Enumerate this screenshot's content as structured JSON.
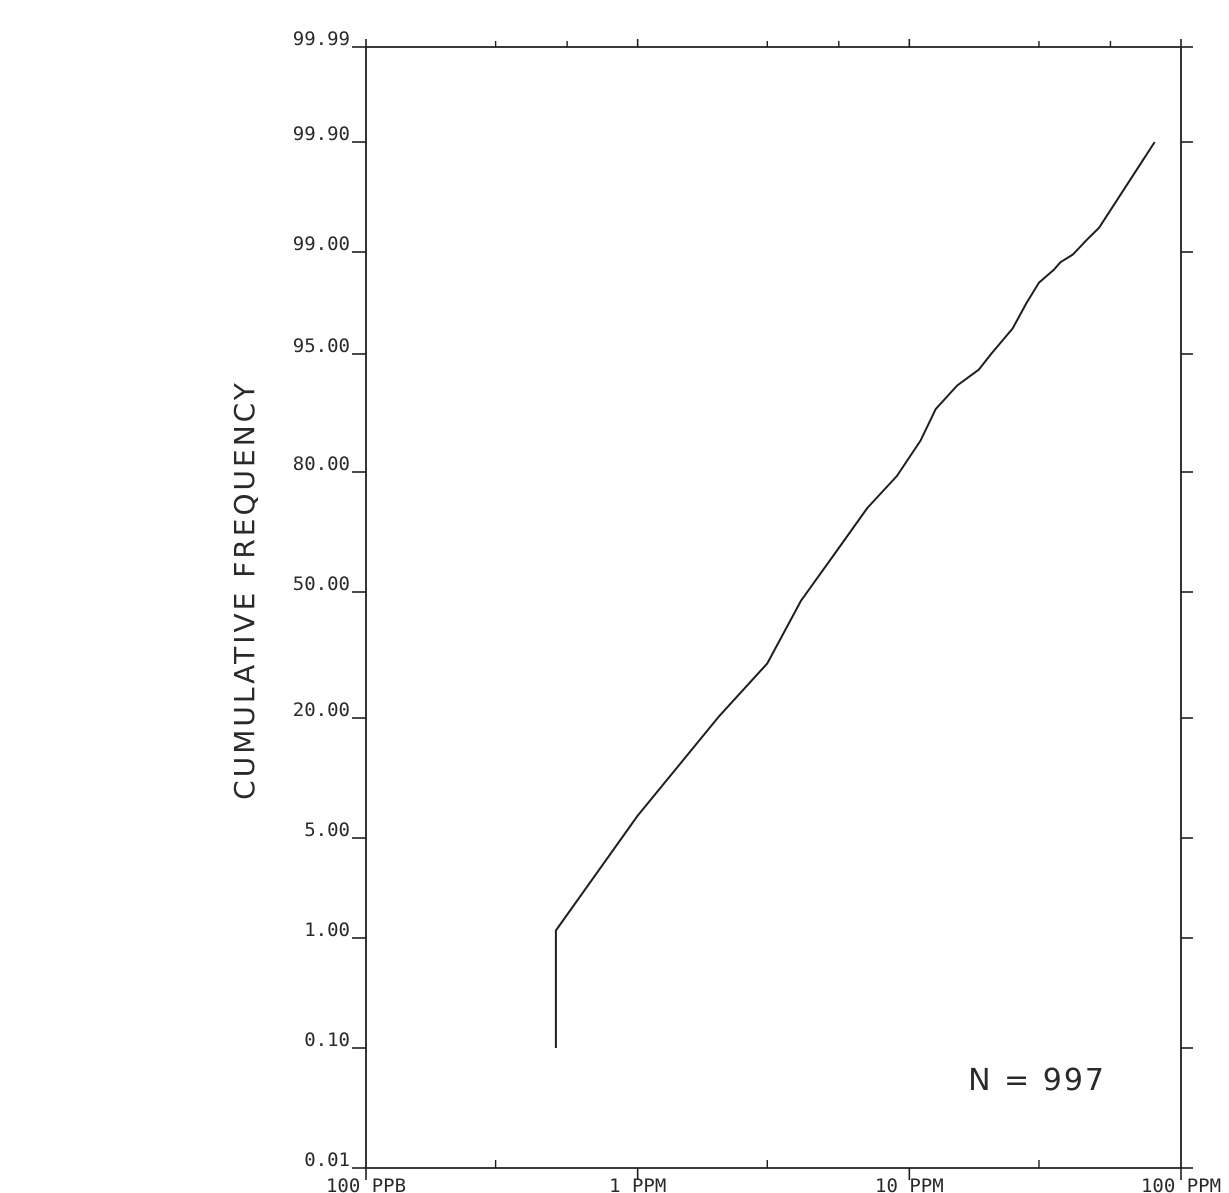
{
  "chart_data": {
    "type": "line",
    "ylabel": "CUMULATIVE FREQUENCY",
    "xlabel": "",
    "x_scale": "log",
    "y_scale": "probability",
    "xlim": [
      0.1,
      100
    ],
    "x_ticks": [
      {
        "value": 0.1,
        "label": "100 PPB"
      },
      {
        "value": 1,
        "label": "1 PPM"
      },
      {
        "value": 10,
        "label": "10 PPM"
      },
      {
        "value": 100,
        "label": "100 PPM"
      }
    ],
    "x_minor_ticks": [
      0.3,
      3,
      30
    ],
    "y_ticks": [
      "99.99",
      "99.90",
      "99.00",
      "95.00",
      "80.00",
      "50.00",
      "20.00",
      "5.00",
      "1.00",
      "0.10",
      "0.01"
    ],
    "grid": false,
    "series": [
      {
        "x": [
          0.5,
          0.5,
          1.0,
          2.0,
          3.0,
          4.0,
          5.5,
          7.0,
          9.0,
          11.0,
          12.5,
          15.0,
          18.0,
          20.0,
          24.0,
          27.0,
          30.0,
          34.0,
          36.0,
          40.0,
          45.0,
          50.0,
          80.0
        ],
        "y": [
          0.1,
          1.3,
          7.8,
          20.5,
          33.0,
          48.0,
          61.0,
          71.0,
          79.0,
          84.0,
          88.0,
          91.0,
          93.0,
          95.0,
          96.0,
          97.0,
          97.8,
          98.3,
          98.6,
          98.9,
          99.1,
          99.2,
          99.9
        ]
      }
    ],
    "annotations": [
      {
        "text": "N  =  997",
        "position": "bottom-right"
      }
    ]
  }
}
